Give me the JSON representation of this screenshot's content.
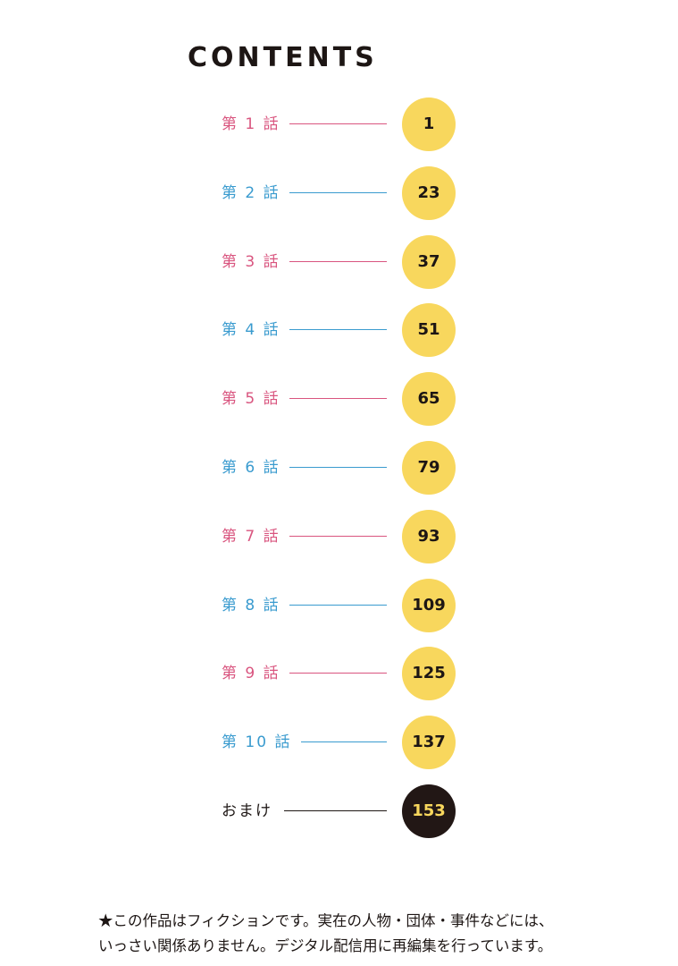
{
  "contents": {
    "title": "CONTENTS",
    "entries": [
      {
        "label": "第 1 話",
        "page": "1",
        "color": "#d9557f"
      },
      {
        "label": "第 2 話",
        "page": "23",
        "color": "#3a9bcf"
      },
      {
        "label": "第 3 話",
        "page": "37",
        "color": "#d9557f"
      },
      {
        "label": "第 4 話",
        "page": "51",
        "color": "#3a9bcf"
      },
      {
        "label": "第 5 話",
        "page": "65",
        "color": "#d9557f"
      },
      {
        "label": "第 6 話",
        "page": "79",
        "color": "#3a9bcf"
      },
      {
        "label": "第 7 話",
        "page": "93",
        "color": "#d9557f"
      },
      {
        "label": "第 8 話",
        "page": "109",
        "color": "#3a9bcf"
      },
      {
        "label": "第 9 話",
        "page": "125",
        "color": "#d9557f"
      },
      {
        "label": "第 10 話",
        "page": "137",
        "color": "#3a9bcf"
      },
      {
        "label": "おまけ",
        "page": "153",
        "color": "#1d1614",
        "badge_style": "dark"
      }
    ]
  },
  "colors": {
    "badge_yellow": "#f8d75d",
    "badge_dark": "#221715",
    "text_dark": "#1d1614",
    "chapter_pink": "#d9557f",
    "chapter_blue": "#3a9bcf"
  },
  "notice": {
    "line1": "★この作品はフィクションです。実在の人物・団体・事件などには、",
    "line2": "いっさい関係ありません。デジタル配信用に再編集を行っています。"
  }
}
